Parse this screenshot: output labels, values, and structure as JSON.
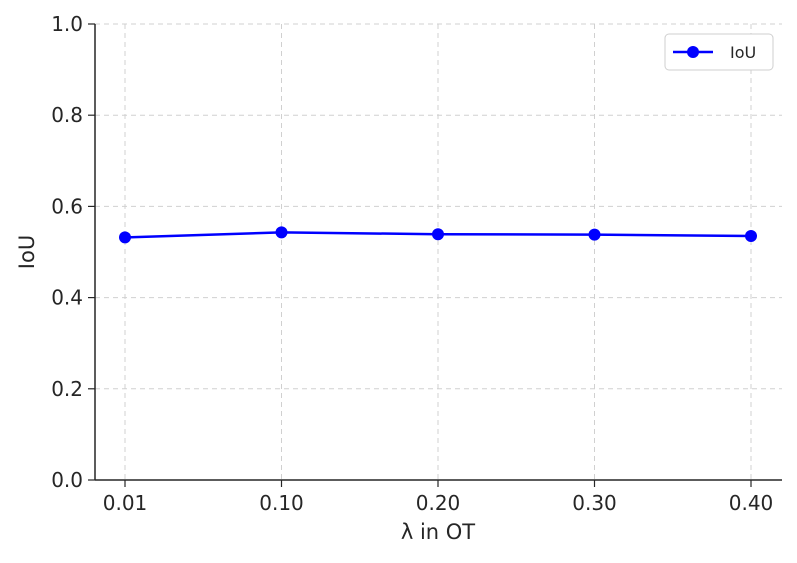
{
  "chart_data": {
    "type": "line",
    "categories": [
      "0.01",
      "0.10",
      "0.20",
      "0.30",
      "0.40"
    ],
    "series": [
      {
        "name": "IoU",
        "values": [
          0.532,
          0.543,
          0.539,
          0.538,
          0.535
        ],
        "color": "#0000ff",
        "marker": "circle"
      }
    ],
    "xlabel": "λ in OT",
    "ylabel": "IoU",
    "ylim": [
      0.0,
      1.0
    ],
    "yticks": [
      "0.0",
      "0.2",
      "0.4",
      "0.6",
      "0.8",
      "1.0"
    ],
    "grid": true,
    "legend_position": "top-right"
  }
}
